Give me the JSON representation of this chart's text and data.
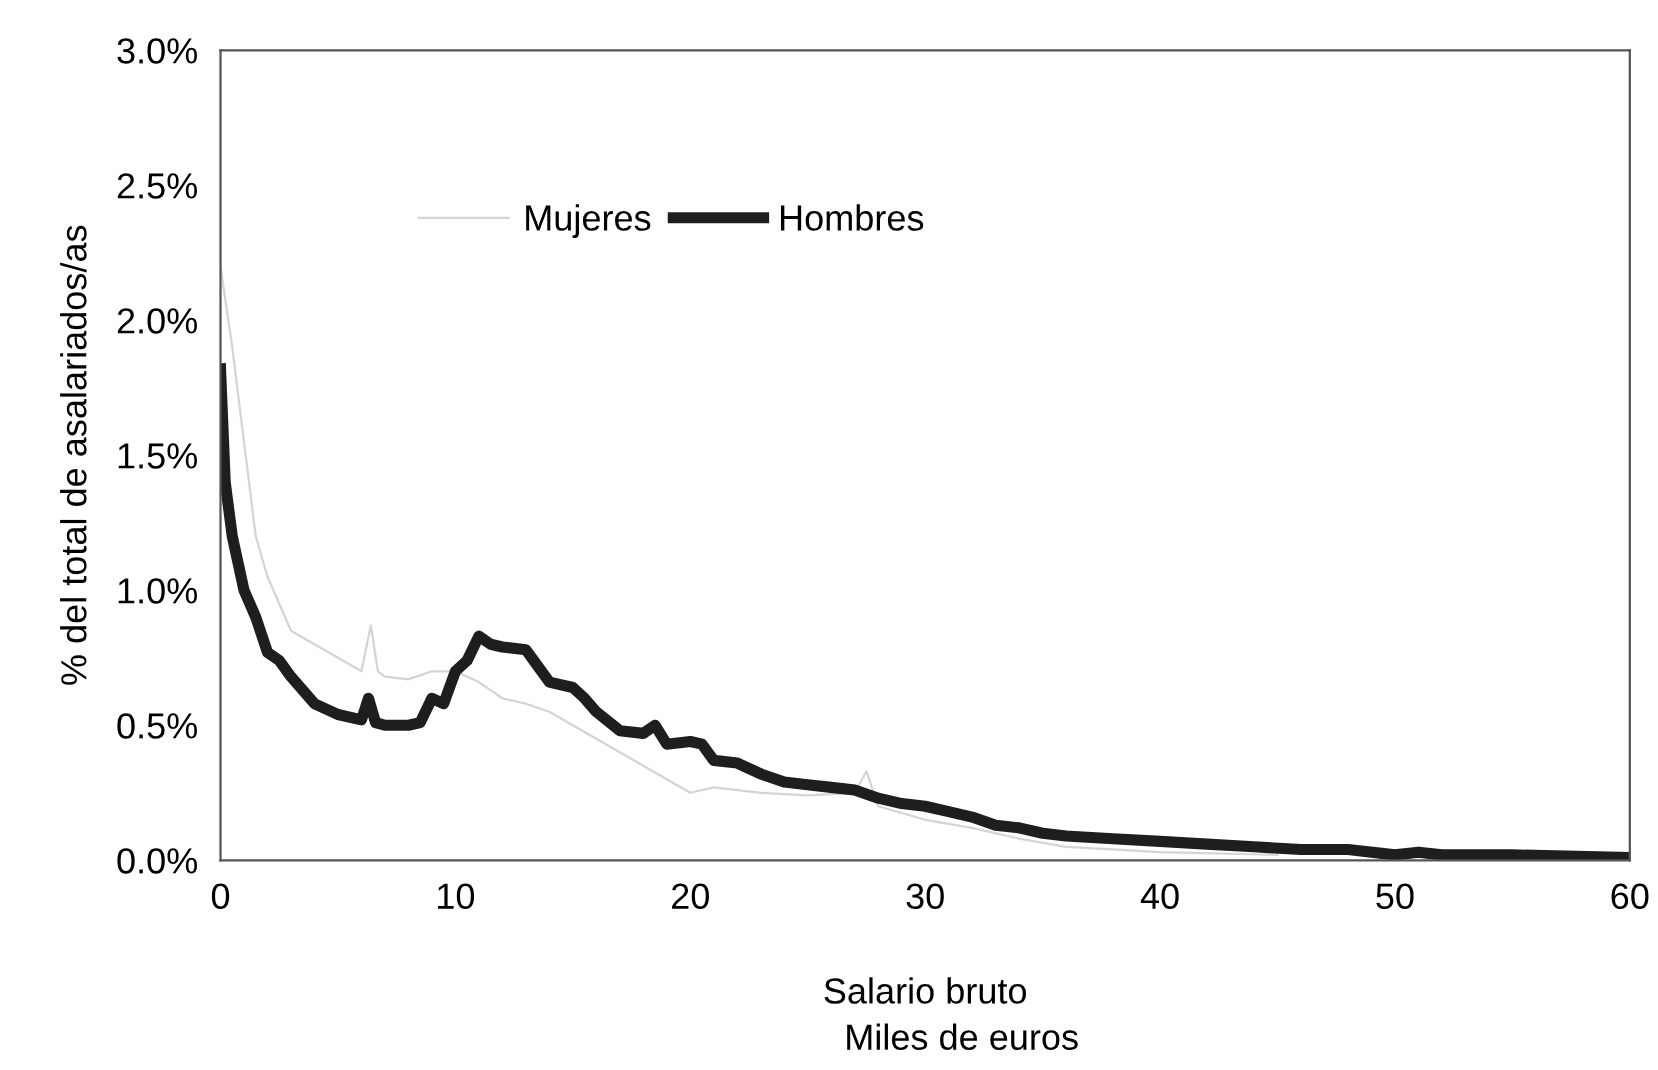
{
  "chart_data": {
    "type": "line",
    "xlabel": "Salario bruto",
    "ylabel": "% del total de asalariados/as",
    "annotations": [
      "Miles de euros"
    ],
    "xlim": [
      0,
      60
    ],
    "xticks": [
      0,
      10,
      20,
      30,
      40,
      50,
      60
    ],
    "ylim": [
      0,
      3.0
    ],
    "yticks": [
      {
        "value": 0,
        "label": "0.0%"
      },
      {
        "value": 0.5,
        "label": "0.5%"
      },
      {
        "value": 1.0,
        "label": "1.0%"
      },
      {
        "value": 1.5,
        "label": "1.5%"
      },
      {
        "value": 2.0,
        "label": "2.0%"
      },
      {
        "value": 2.5,
        "label": "2.5%"
      },
      {
        "value": 3.0,
        "label": "3.0%"
      }
    ],
    "grid": false,
    "legend": "top",
    "marker": "none",
    "line_style": "solid",
    "series": [
      {
        "name": "Mujeres",
        "color": "#d4d4d4",
        "x": [
          0,
          0.5,
          1,
          1.5,
          2,
          3,
          4,
          5,
          6,
          6.4,
          6.7,
          7,
          8,
          9,
          10,
          11,
          12,
          13,
          14,
          15,
          16,
          17,
          18,
          19,
          20,
          21,
          22,
          23,
          25,
          27,
          27.5,
          28,
          30,
          32,
          34,
          36,
          38,
          40,
          45
        ],
        "values": [
          2.2,
          1.9,
          1.55,
          1.2,
          1.05,
          0.85,
          0.8,
          0.75,
          0.7,
          0.87,
          0.7,
          0.68,
          0.67,
          0.7,
          0.7,
          0.66,
          0.6,
          0.58,
          0.55,
          0.5,
          0.45,
          0.4,
          0.35,
          0.3,
          0.25,
          0.27,
          0.26,
          0.25,
          0.24,
          0.25,
          0.33,
          0.2,
          0.15,
          0.12,
          0.08,
          0.05,
          0.04,
          0.03,
          0.02
        ]
      },
      {
        "name": "Hombres",
        "color": "#1e1e1e",
        "x": [
          0,
          0.2,
          0.5,
          1,
          1.5,
          2,
          2.5,
          3,
          4,
          5,
          6,
          6.3,
          6.6,
          7,
          8,
          8.5,
          9,
          9.5,
          10,
          10.5,
          11,
          11.5,
          12,
          13,
          13.5,
          14,
          15,
          15.5,
          16,
          17,
          18,
          18.5,
          19,
          20,
          20.5,
          21,
          22,
          23,
          24,
          25,
          26,
          27,
          28,
          29,
          30,
          31,
          32,
          33,
          34,
          35,
          36,
          38,
          40,
          42,
          44,
          46,
          48,
          50,
          51,
          52,
          55,
          60
        ],
        "values": [
          1.82,
          1.4,
          1.2,
          1.0,
          0.9,
          0.77,
          0.74,
          0.68,
          0.58,
          0.54,
          0.52,
          0.6,
          0.51,
          0.5,
          0.5,
          0.51,
          0.6,
          0.58,
          0.7,
          0.74,
          0.83,
          0.8,
          0.79,
          0.78,
          0.72,
          0.66,
          0.64,
          0.6,
          0.55,
          0.48,
          0.47,
          0.5,
          0.43,
          0.44,
          0.43,
          0.37,
          0.36,
          0.32,
          0.29,
          0.28,
          0.27,
          0.26,
          0.23,
          0.21,
          0.2,
          0.18,
          0.16,
          0.13,
          0.12,
          0.1,
          0.09,
          0.08,
          0.07,
          0.06,
          0.05,
          0.04,
          0.04,
          0.02,
          0.03,
          0.02,
          0.02,
          0.01
        ]
      }
    ]
  }
}
